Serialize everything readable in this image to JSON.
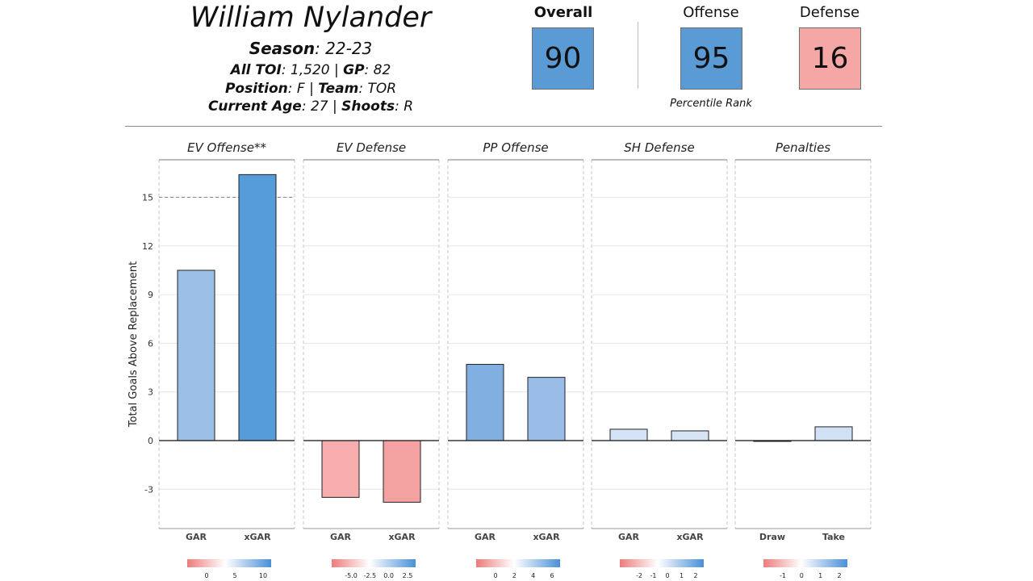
{
  "header": {
    "player_name": "William Nylander",
    "season_label": "Season",
    "season_value": ": 22-23",
    "toi_label": "All TOI",
    "toi_value": ": 1,520 | ",
    "gp_label": "GP",
    "gp_value": ": 82",
    "position_label": "Position",
    "position_value": ": F | ",
    "team_label": "Team",
    "team_value": ": TOR",
    "age_label": "Current Age",
    "age_value": ": 27 | ",
    "shoots_label": "Shoots",
    "shoots_value": ": R"
  },
  "ratings": {
    "overall_label": "Overall",
    "overall_value": "90",
    "offense_label": "Offense",
    "offense_value": "95",
    "defense_label": "Defense",
    "defense_value": "16",
    "percentile_label": "Percentile Rank",
    "colors": {
      "high": "#5b9bd5",
      "low": "#f4a7a5"
    }
  },
  "chart_data": {
    "type": "bar",
    "ylabel": "Total Goals Above Replacement",
    "ylim": [
      -5.4,
      17.4
    ],
    "yticks": [
      -3,
      0,
      3,
      6,
      9,
      12,
      15
    ],
    "ytick_labels": [
      "-3",
      "0",
      "3",
      "6",
      "9",
      "12",
      "15"
    ],
    "reference_line": 15,
    "panels": [
      {
        "title": "EV Offense**",
        "categories": [
          "GAR",
          "xGAR"
        ],
        "values": [
          10.5,
          16.4
        ],
        "colors": [
          "#9cbfe8",
          "#559cd9"
        ],
        "legend_ticks": [
          "0",
          "5",
          "10"
        ]
      },
      {
        "title": "EV Defense",
        "categories": [
          "GAR",
          "xGAR"
        ],
        "values": [
          -3.5,
          -3.8
        ],
        "colors": [
          "#f7adad",
          "#f3a1a1"
        ],
        "legend_ticks": [
          "-5.0",
          "-2.5",
          "0.0",
          "2.5"
        ]
      },
      {
        "title": "PP Offense",
        "categories": [
          "GAR",
          "xGAR"
        ],
        "values": [
          4.7,
          3.9
        ],
        "colors": [
          "#82afe2",
          "#9abde8"
        ],
        "legend_ticks": [
          "0",
          "2",
          "4",
          "6"
        ]
      },
      {
        "title": "SH Defense",
        "categories": [
          "GAR",
          "xGAR"
        ],
        "values": [
          0.7,
          0.6
        ],
        "colors": [
          "#d5e3f6",
          "#d7e4f6"
        ],
        "legend_ticks": [
          "-2",
          "-1",
          "0",
          "1",
          "2"
        ]
      },
      {
        "title": "Penalties",
        "categories": [
          "Draw",
          "Take"
        ],
        "values": [
          -0.05,
          0.85
        ],
        "colors": [
          "#fbe7e7",
          "#d1e0f5"
        ],
        "legend_ticks": [
          "-1",
          "0",
          "1",
          "2"
        ]
      }
    ]
  }
}
